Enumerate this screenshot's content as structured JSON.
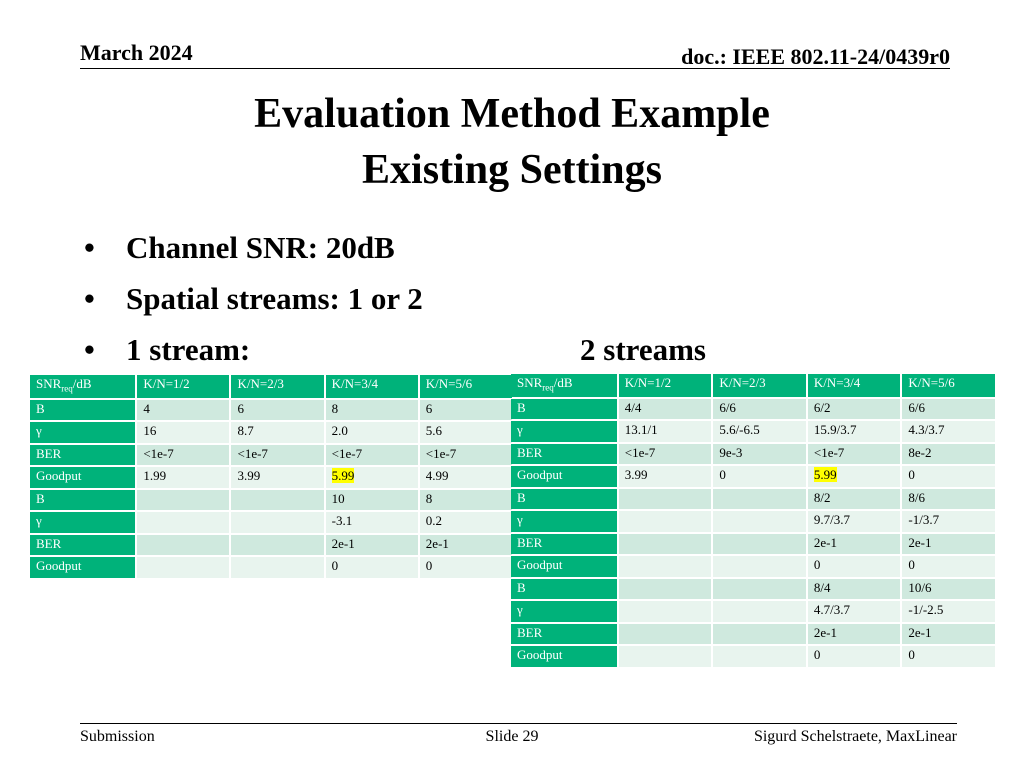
{
  "header": {
    "date": "March 2024",
    "doc": "doc.: IEEE 802.11-24/0439r0"
  },
  "title": {
    "line1": "Evaluation Method Example",
    "line2": "Existing Settings"
  },
  "bullets": {
    "b1": "Channel SNR: 20dB",
    "b2": "Spatial streams: 1 or 2",
    "b3a": "1 stream:",
    "b3b": "2 streams",
    "marker": "•"
  },
  "table1": {
    "head": {
      "snr": "SNR",
      "req": "req",
      "unit": "/dB",
      "c1": "K/N=1/2",
      "c2": "K/N=2/3",
      "c3": "K/N=3/4",
      "c4": "K/N=5/6"
    },
    "rows": [
      {
        "label": "B",
        "c1": "4",
        "c2": "6",
        "c3": "8",
        "c4": "6"
      },
      {
        "label": "γ",
        "c1": "16",
        "c2": "8.7",
        "c3": "2.0",
        "c4": "5.6"
      },
      {
        "label": "BER",
        "c1": "<1e-7",
        "c2": "<1e-7",
        "c3": "<1e-7",
        "c4": "<1e-7"
      },
      {
        "label": "Goodput",
        "c1": "1.99",
        "c2": "3.99",
        "c3": "5.99",
        "c4": "4.99"
      },
      {
        "label": "B",
        "c1": "",
        "c2": "",
        "c3": "10",
        "c4": "8"
      },
      {
        "label": "γ",
        "c1": "",
        "c2": "",
        "c3": "-3.1",
        "c4": "0.2"
      },
      {
        "label": "BER",
        "c1": "",
        "c2": "",
        "c3": "2e-1",
        "c4": "2e-1"
      },
      {
        "label": "Goodput",
        "c1": "",
        "c2": "",
        "c3": "0",
        "c4": "0"
      }
    ]
  },
  "table2": {
    "head": {
      "snr": "SNR",
      "req": "req",
      "unit": "/dB",
      "c1": "K/N=1/2",
      "c2": "K/N=2/3",
      "c3": "K/N=3/4",
      "c4": "K/N=5/6"
    },
    "rows": [
      {
        "label": "B",
        "c1": "4/4",
        "c2": "6/6",
        "c3": "6/2",
        "c4": "6/6"
      },
      {
        "label": "γ",
        "c1": "13.1/1",
        "c2": "5.6/-6.5",
        "c3": "15.9/3.7",
        "c4": "4.3/3.7"
      },
      {
        "label": "BER",
        "c1": "<1e-7",
        "c2": "9e-3",
        "c3": "<1e-7",
        "c4": "8e-2"
      },
      {
        "label": "Goodput",
        "c1": "3.99",
        "c2": "0",
        "c3": "5.99",
        "c4": "0"
      },
      {
        "label": "B",
        "c1": "",
        "c2": "",
        "c3": "8/2",
        "c4": "8/6"
      },
      {
        "label": "γ",
        "c1": "",
        "c2": "",
        "c3": "9.7/3.7",
        "c4": "-1/3.7"
      },
      {
        "label": "BER",
        "c1": "",
        "c2": "",
        "c3": "2e-1",
        "c4": "2e-1"
      },
      {
        "label": "Goodput",
        "c1": "",
        "c2": "",
        "c3": "0",
        "c4": "0"
      },
      {
        "label": "B",
        "c1": "",
        "c2": "",
        "c3": "8/4",
        "c4": "10/6"
      },
      {
        "label": "γ",
        "c1": "",
        "c2": "",
        "c3": "4.7/3.7",
        "c4": "-1/-2.5"
      },
      {
        "label": "BER",
        "c1": "",
        "c2": "",
        "c3": "2e-1",
        "c4": "2e-1"
      },
      {
        "label": "Goodput",
        "c1": "",
        "c2": "",
        "c3": "0",
        "c4": "0"
      }
    ]
  },
  "footer": {
    "left": "Submission",
    "center": "Slide 29",
    "right": "Sigurd Schelstraete, MaxLinear"
  },
  "colors": {
    "header_cell": "#00b27a",
    "row_odd": "#cfe9de",
    "row_even": "#e8f4ee",
    "highlight": "#ffff00"
  }
}
